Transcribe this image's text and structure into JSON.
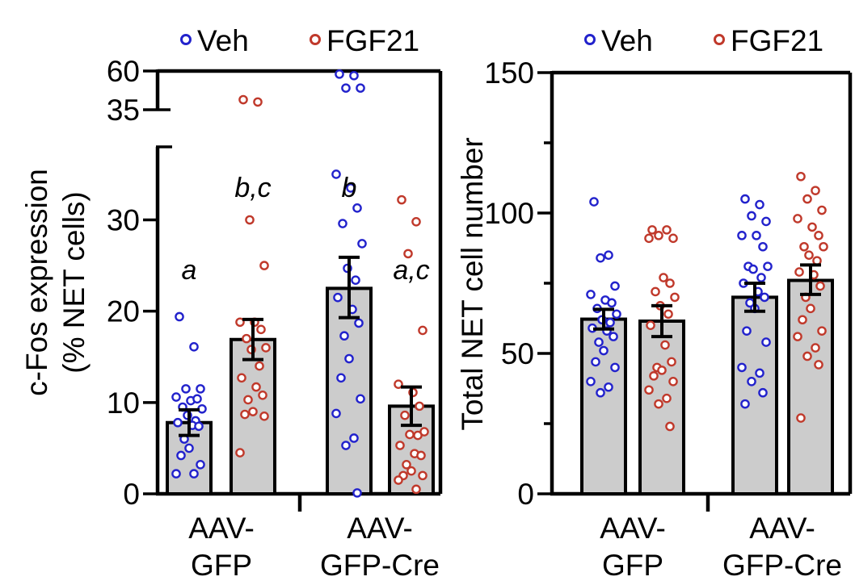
{
  "chart_data": [
    {
      "type": "bar",
      "panel": "left",
      "ylabel_lines": [
        "c-Fos expression",
        "(% NET cells)"
      ],
      "legend": [
        {
          "label": "Veh",
          "color": "#2222cc"
        },
        {
          "label": "FGF21",
          "color": "#c0392b"
        }
      ],
      "legend_position": "top",
      "axis_break": true,
      "yticks_lower": [
        0,
        10,
        20,
        30
      ],
      "yticks_upper": [
        35,
        60
      ],
      "ylim_lower": [
        0,
        38
      ],
      "ylim_upper": [
        35,
        60
      ],
      "groups": [
        {
          "label_lines": [
            "AAV-",
            "GFP"
          ]
        },
        {
          "label_lines": [
            "AAV-",
            "GFP-Cre"
          ]
        }
      ],
      "bars": [
        {
          "group": 0,
          "series": "Veh",
          "mean": 7.8,
          "sem_low": 6.4,
          "sem_high": 9.2,
          "letter": "a",
          "letter_y": 23.5,
          "points": [
            19.4,
            16.1,
            11.5,
            11.5,
            10.6,
            10.2,
            10.4,
            9.5,
            9.3,
            8.6,
            8.0,
            7.8,
            7.5,
            7.4,
            6.0,
            5.0,
            4.2,
            3.2,
            2.2,
            2.2
          ]
        },
        {
          "group": 0,
          "series": "FGF21",
          "mean": 16.9,
          "sem_low": 14.7,
          "sem_high": 19.1,
          "letter": "b,c",
          "letter_y": 32.5,
          "points": [
            41.5,
            40.0,
            30.0,
            25.0,
            18.8,
            18.8,
            18.0,
            17.0,
            16.0,
            15.8,
            14.0,
            12.7,
            11.7,
            10.8,
            10.3,
            9.0,
            8.7,
            8.5,
            4.5
          ]
        },
        {
          "group": 1,
          "series": "Veh",
          "mean": 22.5,
          "sem_low": 19.3,
          "sem_high": 25.9,
          "letter": "b",
          "letter_y": 32.5,
          "points": [
            58.0,
            57.0,
            49.0,
            49.0,
            35.0,
            33.5,
            31.3,
            29.6,
            27.4,
            24.7,
            23.4,
            21.5,
            20.2,
            18.7,
            17.3,
            14.8,
            12.7,
            10.4,
            8.8,
            6.1,
            5.3,
            0.1
          ]
        },
        {
          "group": 1,
          "series": "FGF21",
          "mean": 9.6,
          "sem_low": 7.5,
          "sem_high": 11.7,
          "letter": "a,c",
          "letter_y": 23.5,
          "points": [
            32.2,
            29.8,
            26.3,
            17.9,
            12.0,
            11.1,
            9.6,
            8.6,
            6.8,
            6.5,
            6.4,
            5.3,
            4.4,
            4.2,
            3.2,
            2.5,
            2.0,
            2.0,
            1.5,
            0.5
          ]
        }
      ]
    },
    {
      "type": "bar",
      "panel": "right",
      "ylabel": "Total NET cell number",
      "legend": [
        {
          "label": "Veh",
          "color": "#2222cc"
        },
        {
          "label": "FGF21",
          "color": "#c0392b"
        }
      ],
      "legend_position": "top",
      "yticks": [
        0,
        50,
        100,
        150
      ],
      "ylim": [
        0,
        150
      ],
      "groups": [
        {
          "label_lines": [
            "AAV-",
            "GFP"
          ]
        },
        {
          "label_lines": [
            "AAV-",
            "GFP-Cre"
          ]
        }
      ],
      "bars": [
        {
          "group": 0,
          "series": "Veh",
          "mean": 62.2,
          "sem_low": 58.7,
          "sem_high": 65.7,
          "points": [
            104,
            85,
            84,
            74,
            71,
            69,
            68,
            66,
            64,
            62,
            61,
            59,
            58,
            56,
            54,
            51,
            47,
            45,
            40,
            38,
            36
          ]
        },
        {
          "group": 0,
          "series": "FGF21",
          "mean": 61.5,
          "sem_low": 56.0,
          "sem_high": 67.0,
          "points": [
            94,
            94,
            92,
            91,
            91,
            77,
            75,
            72,
            70,
            67,
            64,
            60,
            53,
            47,
            45,
            44,
            42,
            40,
            37,
            34,
            32,
            24
          ]
        },
        {
          "group": 1,
          "series": "Veh",
          "mean": 70.0,
          "sem_low": 65.0,
          "sem_high": 75.0,
          "points": [
            105,
            103,
            99,
            97,
            92,
            92,
            88,
            81,
            81,
            80,
            77,
            75,
            72,
            70,
            68,
            66,
            58,
            54,
            45,
            43,
            40,
            36,
            32
          ]
        },
        {
          "group": 1,
          "series": "FGF21",
          "mean": 76.0,
          "sem_low": 71.0,
          "sem_high": 81.5,
          "points": [
            113,
            108,
            105,
            101,
            98,
            95,
            92,
            88,
            88,
            85,
            83,
            79,
            78,
            74,
            70,
            66,
            62,
            58,
            56,
            52,
            49,
            46,
            27
          ]
        }
      ]
    }
  ]
}
